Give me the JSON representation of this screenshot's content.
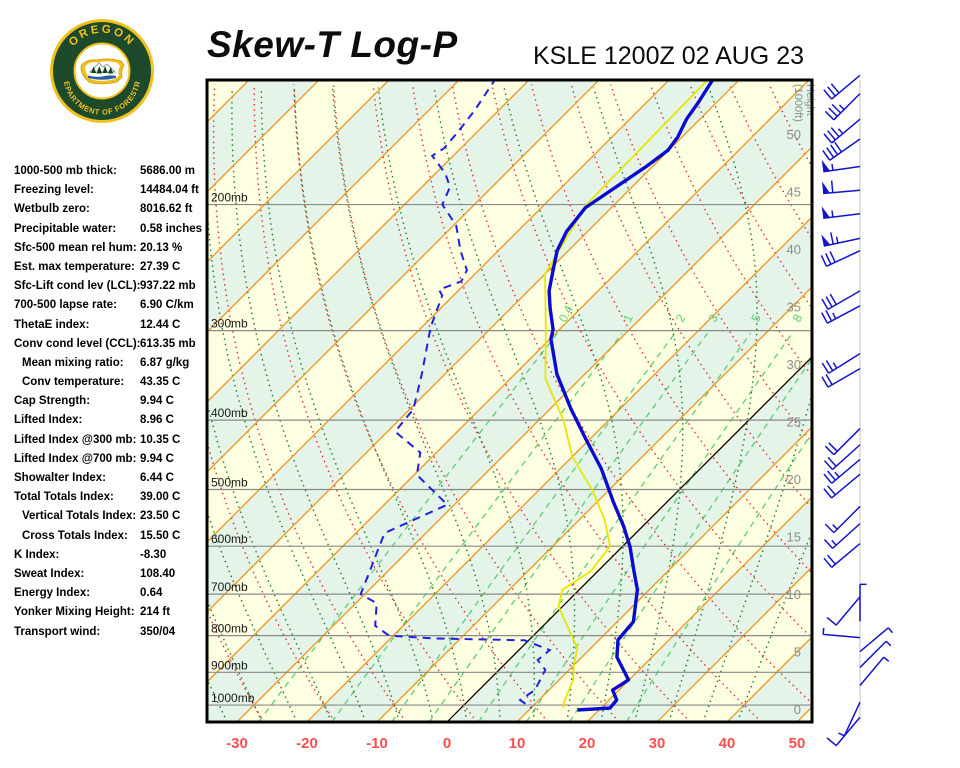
{
  "header": {
    "title": "Skew-T Log-P",
    "station": "KSLE 1200Z 02 AUG 23"
  },
  "logo": {
    "text_top": "OREGON",
    "text_bottom": "DEPARTMENT OF FORESTRY",
    "ring_green": "#1d4a2a",
    "gold": "#f2c01e"
  },
  "indices": [
    {
      "label": "1000-500 mb thick:",
      "value": "5686.00 m",
      "indent": false
    },
    {
      "label": "Freezing level:",
      "value": "14484.04 ft",
      "indent": false
    },
    {
      "label": "Wetbulb zero:",
      "value": "8016.62 ft",
      "indent": false
    },
    {
      "label": "Precipitable water:",
      "value": "0.58 inches",
      "indent": false
    },
    {
      "label": "Sfc-500 mean rel hum:",
      "value": "20.13 %",
      "indent": false
    },
    {
      "label": "Est. max temperature:",
      "value": "27.39 C",
      "indent": false
    },
    {
      "label": "Sfc-Lift cond lev (LCL):",
      "value": "937.22 mb",
      "indent": false
    },
    {
      "label": "700-500 lapse rate:",
      "value": "6.90 C/km",
      "indent": false
    },
    {
      "label": "ThetaE index:",
      "value": "12.44 C",
      "indent": false
    },
    {
      "label": "Conv cond level (CCL):",
      "value": "613.35 mb",
      "indent": false
    },
    {
      "label": "Mean mixing ratio:",
      "value": "6.87 g/kg",
      "indent": true
    },
    {
      "label": "Conv temperature:",
      "value": "43.35 C",
      "indent": true
    },
    {
      "label": "Cap Strength:",
      "value": "9.94 C",
      "indent": false
    },
    {
      "label": "Lifted Index:",
      "value": "8.96 C",
      "indent": false
    },
    {
      "label": "Lifted Index @300 mb:",
      "value": "10.35 C",
      "indent": false
    },
    {
      "label": "Lifted Index @700 mb:",
      "value": "9.94 C",
      "indent": false
    },
    {
      "label": "Showalter Index:",
      "value": "6.44 C",
      "indent": false
    },
    {
      "label": "Total Totals Index:",
      "value": "39.00 C",
      "indent": false
    },
    {
      "label": "Vertical Totals Index:",
      "value": "23.50 C",
      "indent": true
    },
    {
      "label": "Cross Totals Index:",
      "value": "15.50 C",
      "indent": true
    },
    {
      "label": "K Index:",
      "value": "-8.30",
      "indent": false
    },
    {
      "label": "Sweat Index:",
      "value": "108.40",
      "indent": false
    },
    {
      "label": "Energy Index:",
      "value": "0.64",
      "indent": false
    },
    {
      "label": "Yonker Mixing Height:",
      "value": "214 ft",
      "indent": false
    },
    {
      "label": "Transport wind:",
      "value": "350/04",
      "indent": false
    }
  ],
  "chart_data": {
    "type": "skewt_log_p",
    "title": "Skew-T Log-P",
    "station_time": "KSLE 1200Z 02 AUG 23",
    "x_axis": {
      "tick_values": [
        -30,
        -20,
        -10,
        0,
        10,
        20,
        30,
        40,
        50
      ],
      "unit": "C"
    },
    "pressure_levels": [
      200,
      300,
      400,
      500,
      600,
      700,
      800,
      900,
      1000
    ],
    "pressure_label_suffix": "mb",
    "pressure_range": [
      134,
      1056
    ],
    "height_axis": {
      "title_lines": [
        "Height",
        "(1000ft)"
      ],
      "ticks": [
        0,
        5,
        10,
        15,
        20,
        25,
        30,
        35,
        40,
        45,
        50
      ]
    },
    "isotherms": {
      "min": -130,
      "max": 50,
      "step": 10
    },
    "dry_adiabats": {
      "min": -40,
      "max": 150,
      "step": 10
    },
    "moist_adiabats": {
      "min": -40,
      "max": 40,
      "step": 5
    },
    "mixing_ratio_lines": {
      "values": [
        0.4,
        1,
        2,
        3,
        5,
        8,
        12,
        20
      ],
      "labels": [
        "0.4",
        "1",
        "2",
        "3",
        "5",
        "8"
      ]
    },
    "temperature_profile": [
      [
        133,
        -53.9
      ],
      [
        144,
        -52.6
      ],
      [
        152,
        -51.9
      ],
      [
        161,
        -50.6
      ],
      [
        168,
        -50.1
      ],
      [
        177,
        -50.9
      ],
      [
        202,
        -53.7
      ],
      [
        218,
        -53.0
      ],
      [
        232,
        -51.6
      ],
      [
        249,
        -49.1
      ],
      [
        264,
        -47.0
      ],
      [
        279,
        -44.4
      ],
      [
        299,
        -40.9
      ],
      [
        308,
        -39.9
      ],
      [
        345,
        -34.0
      ],
      [
        386,
        -27.0
      ],
      [
        425,
        -20.6
      ],
      [
        468,
        -14.1
      ],
      [
        521,
        -7.6
      ],
      [
        563,
        -2.7
      ],
      [
        601,
        1.1
      ],
      [
        647,
        4.9
      ],
      [
        690,
        8.3
      ],
      [
        765,
        12.3
      ],
      [
        811,
        12.7
      ],
      [
        857,
        15.0
      ],
      [
        922,
        19.9
      ],
      [
        934,
        19.6
      ],
      [
        953,
        19.1
      ],
      [
        984,
        21.1
      ],
      [
        1010,
        21.3
      ],
      [
        1016,
        16.9
      ]
    ],
    "dewpoint_profile": [
      [
        133,
        -85.0
      ],
      [
        148,
        -83.4
      ],
      [
        159,
        -82.7
      ],
      [
        167,
        -82.4
      ],
      [
        171,
        -83.0
      ],
      [
        181,
        -78.6
      ],
      [
        189,
        -76.0
      ],
      [
        200,
        -74.6
      ],
      [
        214,
        -69.6
      ],
      [
        232,
        -65.4
      ],
      [
        247,
        -61.7
      ],
      [
        256,
        -60.9
      ],
      [
        263,
        -62.9
      ],
      [
        268,
        -61.6
      ],
      [
        295,
        -58.9
      ],
      [
        302,
        -58.1
      ],
      [
        345,
        -53.3
      ],
      [
        386,
        -49.5
      ],
      [
        415,
        -48.9
      ],
      [
        444,
        -42.3
      ],
      [
        477,
        -39.6
      ],
      [
        525,
        -31.0
      ],
      [
        575,
        -35.9
      ],
      [
        604,
        -34.6
      ],
      [
        640,
        -33.0
      ],
      [
        700,
        -30.6
      ],
      [
        721,
        -27.0
      ],
      [
        775,
        -24.0
      ],
      [
        800,
        -20.6
      ],
      [
        807,
        -14.0
      ],
      [
        812,
        -0.6
      ],
      [
        838,
        4.4
      ],
      [
        865,
        4.1
      ],
      [
        893,
        6.6
      ],
      [
        953,
        8.0
      ],
      [
        984,
        7.3
      ],
      [
        1010,
        10.1
      ]
    ],
    "wetbulb_profile": [
      [
        134,
        -54.5
      ],
      [
        200,
        -54.0
      ],
      [
        250,
        -50.0
      ],
      [
        300,
        -41.8
      ],
      [
        350,
        -35.0
      ],
      [
        400,
        -26.5
      ],
      [
        450,
        -20.0
      ],
      [
        500,
        -12.5
      ],
      [
        550,
        -6.5
      ],
      [
        600,
        -1.8
      ],
      [
        650,
        -1.0
      ],
      [
        690,
        -2.4
      ],
      [
        728,
        -0.6
      ],
      [
        770,
        3.0
      ],
      [
        833,
        8.1
      ],
      [
        880,
        10.0
      ],
      [
        922,
        12.0
      ],
      [
        984,
        13.7
      ],
      [
        1010,
        14.6
      ]
    ],
    "wind_barbs": [
      {
        "p": 132,
        "dir": 230,
        "spd": 30
      },
      {
        "p": 140,
        "dir": 225,
        "spd": 35
      },
      {
        "p": 152,
        "dir": 230,
        "spd": 35
      },
      {
        "p": 162,
        "dir": 235,
        "spd": 40
      },
      {
        "p": 177,
        "dir": 262,
        "spd": 55
      },
      {
        "p": 191,
        "dir": 265,
        "spd": 60
      },
      {
        "p": 206,
        "dir": 263,
        "spd": 55
      },
      {
        "p": 223,
        "dir": 258,
        "spd": 65
      },
      {
        "p": 232,
        "dir": 245,
        "spd": 30
      },
      {
        "p": 264,
        "dir": 240,
        "spd": 30
      },
      {
        "p": 277,
        "dir": 242,
        "spd": 25
      },
      {
        "p": 323,
        "dir": 238,
        "spd": 25
      },
      {
        "p": 339,
        "dir": 240,
        "spd": 20
      },
      {
        "p": 411,
        "dir": 225,
        "spd": 20
      },
      {
        "p": 433,
        "dir": 228,
        "spd": 20
      },
      {
        "p": 454,
        "dir": 230,
        "spd": 25
      },
      {
        "p": 476,
        "dir": 230,
        "spd": 20
      },
      {
        "p": 528,
        "dir": 225,
        "spd": 15
      },
      {
        "p": 558,
        "dir": 228,
        "spd": 15
      },
      {
        "p": 595,
        "dir": 230,
        "spd": 20
      },
      {
        "p": 706,
        "dir": 220,
        "spd": 10
      },
      {
        "p": 764,
        "dir": 0,
        "spd": 3
      },
      {
        "p": 805,
        "dir": 275,
        "spd": 5
      },
      {
        "p": 842,
        "dir": 50,
        "spd": 5
      },
      {
        "p": 886,
        "dir": 45,
        "spd": 5
      },
      {
        "p": 939,
        "dir": 40,
        "spd": 5
      },
      {
        "p": 991,
        "dir": 205,
        "spd": 5
      },
      {
        "p": 1040,
        "dir": 220,
        "spd": 8
      }
    ],
    "colors": {
      "band_yellow": "#ffffe1",
      "band_green": "#e4f4e9",
      "isotherm": "#ef8e10",
      "dry_adiabat": "#e03131",
      "moist_adiabat": "#1e7d1e",
      "mixing_ratio": "#58d06c",
      "pressure_line": "#8a8a8a",
      "zero_isotherm": "#000000",
      "temperature_trace": "#0a0ad0",
      "dewpoint_trace": "#2020e0",
      "wetbulb_trace": "#e6e600",
      "axis_label_red": "#ff4d4d",
      "height_label": "#8c8c8c",
      "pressure_label": "#1a1a1a",
      "wind_barb": "#1414cc",
      "border": "#000000"
    }
  }
}
